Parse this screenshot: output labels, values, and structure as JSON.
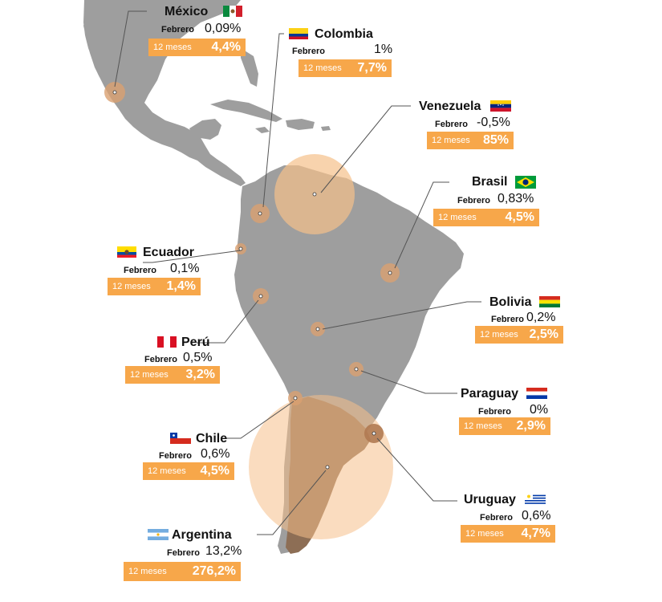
{
  "labels": {
    "monthly": "Febrero",
    "yearly": "12 meses"
  },
  "colors": {
    "land": "#9e9e9e",
    "land_highlight": "#8d6e55",
    "sea": "#ffffff",
    "accent": "#f7a74a",
    "circle_fill": "#f5c08a",
    "leader": "#555555"
  },
  "countries": [
    {
      "id": "mexico",
      "name": "México",
      "monthly": "0,09%",
      "yearly": "4,4%",
      "flag": "mexico-flag-icon"
    },
    {
      "id": "colombia",
      "name": "Colombia",
      "monthly": "1%",
      "yearly": "7,7%",
      "flag": "colombia-flag-icon"
    },
    {
      "id": "venezuela",
      "name": "Venezuela",
      "monthly": "-0,5%",
      "yearly": "85%",
      "flag": "venezuela-flag-icon"
    },
    {
      "id": "brasil",
      "name": "Brasil",
      "monthly": "0,83%",
      "yearly": "4,5%",
      "flag": "brazil-flag-icon"
    },
    {
      "id": "ecuador",
      "name": "Ecuador",
      "monthly": "0,1%",
      "yearly": "1,4%",
      "flag": "ecuador-flag-icon"
    },
    {
      "id": "bolivia",
      "name": "Bolivia",
      "monthly": "0,2%",
      "yearly": "2,5%",
      "flag": "bolivia-flag-icon"
    },
    {
      "id": "peru",
      "name": "Perú",
      "monthly": "0,5%",
      "yearly": "3,2%",
      "flag": "peru-flag-icon"
    },
    {
      "id": "paraguay",
      "name": "Paraguay",
      "monthly": "0%",
      "yearly": "2,9%",
      "flag": "paraguay-flag-icon"
    },
    {
      "id": "chile",
      "name": "Chile",
      "monthly": "0,6%",
      "yearly": "4,5%",
      "flag": "chile-flag-icon"
    },
    {
      "id": "uruguay",
      "name": "Uruguay",
      "monthly": "0,6%",
      "yearly": "4,7%",
      "flag": "uruguay-flag-icon"
    },
    {
      "id": "argentina",
      "name": "Argentina",
      "monthly": "13,2%",
      "yearly": "276,2%",
      "flag": "argentina-flag-icon"
    }
  ]
}
